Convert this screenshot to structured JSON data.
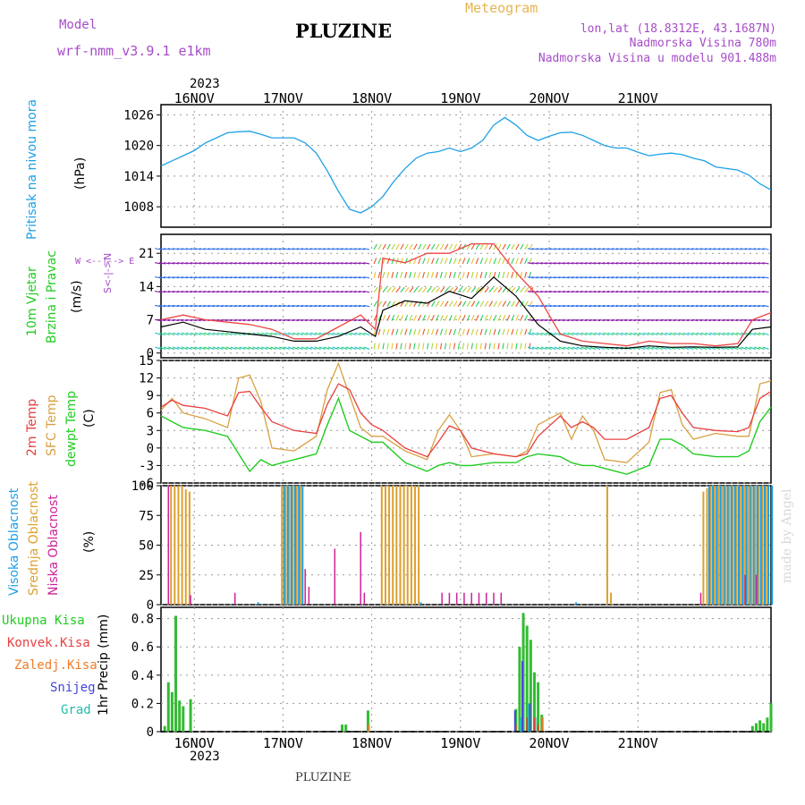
{
  "header": {
    "model_label": "Model",
    "model_name": "wrf-nmm_v3.9.1 e1km",
    "station": "PLUZINE",
    "meteogram": "Meteogram",
    "lonlat": "lon,lat (18.8312E, 43.1687N)",
    "altitude": "Nadmorska Visina 780m",
    "model_altitude": "Nadmorska Visina u modelu 901.488m",
    "footer_station": "PLUZINE",
    "credit": "made by Angel"
  },
  "colors": {
    "pressure": "#1ea0e6",
    "temp2m": "#e84040",
    "sfctemp": "#d9a040",
    "dewpt": "#22cc22",
    "high": "#1e9fe6",
    "mid": "#dca030",
    "low": "#cc2299",
    "total": "#33bb33",
    "conv": "#ee3333",
    "frozen": "#f07c28",
    "snow": "#4444dd",
    "hail": "#22bbaa",
    "purple": "#a64cc9",
    "orange": "#e6b450"
  },
  "axes": {
    "year_top": "2023",
    "year_bottom": "2023",
    "days": [
      "16NOV",
      "17NOV",
      "18NOV",
      "19NOV",
      "20NOV",
      "21NOV"
    ]
  },
  "labels": {
    "pressure_name": "Pritisak na nivou mora",
    "pressure_unit": "(hPa)",
    "wind_name1": "10m Vjetar",
    "wind_name2": "Brzina i Pravac",
    "wind_unit": "(m/s)",
    "wind_compass": "W <--|--> E",
    "wind_compass2": "S<-|->N",
    "temp_2m": "2m Temp",
    "temp_sfc": "SFC Temp",
    "temp_dew": "dewpt Temp",
    "temp_unit": "(C)",
    "cloud_high": "Visoka Oblacnost",
    "cloud_mid": "Srednja Oblacnost",
    "cloud_low": "Niska Oblacnost",
    "cloud_unit": "(%)",
    "precip_total": "Ukupna Kisa",
    "precip_conv": "Konvek.Kisa",
    "precip_frozen": "Zaledj.Kisa",
    "precip_snow": "Snijeg",
    "precip_hail": "Grad",
    "precip_unit": "1hr Precip (mm)"
  },
  "chart_data": [
    {
      "type": "line",
      "panel": "pressure",
      "x_start": "2023-11-15 15:00",
      "x_end": "2023-11-21 12:00",
      "ylim": [
        1004,
        1028
      ],
      "yticks": [
        1008,
        1014,
        1020,
        1026
      ],
      "series": [
        {
          "x_hours": [
            0,
            3,
            6,
            9,
            12,
            15,
            18,
            21,
            24,
            27,
            30,
            33,
            36,
            39,
            42,
            45,
            48,
            51,
            54,
            57,
            60,
            63,
            66,
            69,
            72,
            75,
            78,
            81,
            84,
            87,
            90,
            93,
            96,
            99,
            102,
            105,
            108,
            111,
            114,
            117,
            120,
            123,
            126,
            129,
            132,
            135,
            138,
            141,
            144,
            147,
            150,
            153,
            156,
            159,
            162,
            165
          ],
          "values": [
            1016,
            1017,
            1018,
            1019,
            1020.5,
            1021.5,
            1022.5,
            1022.7,
            1022.8,
            1022.2,
            1021.5,
            1021.5,
            1021.5,
            1020.5,
            1018.5,
            1015,
            1011,
            1007.5,
            1006.8,
            1008,
            1010,
            1013,
            1015.5,
            1017.5,
            1018.5,
            1018.8,
            1019.5,
            1018.8,
            1019.5,
            1021,
            1024,
            1025.5,
            1024,
            1022,
            1021,
            1021.8,
            1022.5,
            1022.6,
            1022,
            1021,
            1020,
            1019.5,
            1019.5,
            1018.7,
            1018,
            1018.3,
            1018.5,
            1018.2,
            1017.5,
            1017,
            1015.8,
            1015.5,
            1015.2,
            1014.2,
            1012.5,
            1011.3
          ]
        }
      ]
    },
    {
      "type": "line",
      "panel": "wind",
      "ylim": [
        -1,
        25
      ],
      "yticks": [
        0,
        7,
        14,
        21
      ],
      "series": [
        {
          "x_hours": [
            0,
            6,
            12,
            18,
            24,
            30,
            36,
            42,
            48,
            54,
            58,
            60,
            66,
            72,
            78,
            84,
            90,
            96,
            102,
            108,
            114,
            120,
            126,
            132,
            138,
            144,
            150,
            156,
            160,
            165
          ],
          "values": [
            5.5,
            6.5,
            5,
            4.5,
            4,
            3.5,
            2.5,
            2.5,
            3.5,
            5.5,
            3.5,
            9,
            11,
            10.5,
            13,
            11.5,
            16,
            12,
            6,
            2.5,
            1.5,
            1.2,
            1,
            1.5,
            1.2,
            1.3,
            1.2,
            1.3,
            5,
            5.5
          ]
        },
        {
          "x_hours": [
            0,
            6,
            12,
            18,
            24,
            30,
            36,
            42,
            48,
            54,
            58,
            60,
            66,
            72,
            78,
            84,
            90,
            96,
            102,
            108,
            114,
            120,
            126,
            132,
            138,
            144,
            150,
            156,
            160,
            165
          ],
          "values": [
            7,
            8,
            7,
            6.5,
            6,
            5,
            3,
            3,
            5.5,
            8,
            5,
            20,
            19,
            21,
            21,
            23,
            23,
            17,
            12,
            4,
            2.5,
            2,
            1.5,
            2.5,
            2,
            2,
            1.5,
            2,
            7,
            8.5
          ]
        }
      ]
    },
    {
      "type": "line",
      "panel": "temperature",
      "ylim": [
        -6,
        15
      ],
      "yticks": [
        -6,
        -3,
        0,
        3,
        6,
        9,
        12,
        15
      ],
      "series": [
        {
          "name": "2m Temp",
          "x_hours": [
            0,
            3,
            6,
            12,
            18,
            21,
            24,
            27,
            30,
            36,
            42,
            45,
            48,
            51,
            54,
            57,
            60,
            66,
            72,
            75,
            78,
            81,
            84,
            90,
            96,
            99,
            102,
            108,
            111,
            114,
            117,
            120,
            126,
            132,
            135,
            138,
            141,
            144,
            150,
            156,
            159,
            162,
            165
          ],
          "values": [
            7,
            8.2,
            7.3,
            6.8,
            5.5,
            9.5,
            9.7,
            7,
            4.5,
            3,
            2.5,
            7.5,
            11,
            10,
            6,
            4,
            3,
            0,
            -1.5,
            1,
            3.8,
            3,
            0,
            -1,
            -1.5,
            -1,
            2,
            5.5,
            3.5,
            4.5,
            3.5,
            1.5,
            1.5,
            3.5,
            8.5,
            9,
            6,
            3.5,
            3,
            2.8,
            3.5,
            8.5,
            9.7
          ]
        },
        {
          "name": "SFC Temp",
          "x_hours": [
            0,
            3,
            6,
            12,
            18,
            21,
            24,
            27,
            30,
            36,
            42,
            45,
            48,
            51,
            54,
            57,
            60,
            66,
            72,
            75,
            78,
            81,
            84,
            90,
            96,
            99,
            102,
            108,
            111,
            114,
            117,
            120,
            126,
            132,
            135,
            138,
            141,
            144,
            150,
            156,
            159,
            162,
            165
          ],
          "values": [
            6.5,
            8.5,
            6,
            5,
            3.5,
            12,
            12.5,
            8,
            0,
            -0.5,
            2,
            10,
            14.5,
            9,
            3.5,
            2,
            2,
            -0.5,
            -2,
            3,
            5.7,
            3,
            -1.5,
            -1,
            -1.5,
            -0.5,
            4,
            6,
            1.5,
            5.5,
            3,
            -2,
            -2.5,
            1,
            9.5,
            10,
            4,
            1.5,
            2.5,
            2,
            2,
            11,
            11.5
          ]
        },
        {
          "name": "dewpt Temp",
          "x_hours": [
            0,
            3,
            6,
            12,
            18,
            21,
            24,
            27,
            30,
            36,
            42,
            45,
            48,
            51,
            54,
            57,
            60,
            66,
            72,
            75,
            78,
            81,
            84,
            90,
            96,
            99,
            102,
            108,
            111,
            114,
            117,
            120,
            126,
            132,
            135,
            138,
            141,
            144,
            150,
            156,
            159,
            162,
            165
          ],
          "values": [
            5.5,
            4.5,
            3.5,
            3,
            2,
            -1,
            -4,
            -2,
            -3,
            -2,
            -1,
            4,
            8.5,
            3,
            2,
            1,
            1,
            -2.5,
            -4,
            -3,
            -2.5,
            -3,
            -3,
            -2.5,
            -2.5,
            -1.5,
            -1,
            -1.5,
            -2.5,
            -3,
            -3,
            -3.5,
            -4.5,
            -3,
            1.5,
            1.5,
            0.5,
            -1,
            -1.5,
            -1.5,
            -0.5,
            4.5,
            7
          ]
        }
      ]
    },
    {
      "type": "bar",
      "panel": "clouds",
      "ylim": [
        0,
        100
      ],
      "yticks": [
        0,
        25,
        50,
        75,
        100
      ],
      "series": [
        {
          "name": "Visoka Oblacnost",
          "x_hours": [
            26,
            33,
            34,
            35,
            36,
            37,
            38,
            70,
            112,
            148,
            149,
            150,
            151,
            152,
            153,
            154,
            155,
            156,
            157,
            158,
            159,
            160,
            161,
            162,
            163,
            164,
            165
          ],
          "values": [
            2,
            100,
            100,
            100,
            100,
            100,
            100,
            2,
            2,
            100,
            100,
            100,
            100,
            100,
            100,
            100,
            100,
            100,
            100,
            100,
            100,
            100,
            100,
            100,
            100,
            100,
            100
          ]
        },
        {
          "name": "Srednja Oblacnost",
          "x_hours": [
            3,
            4,
            5,
            6,
            7,
            8,
            33,
            34,
            35,
            36,
            37,
            38,
            60,
            61,
            62,
            63,
            64,
            65,
            66,
            67,
            68,
            69,
            70,
            121,
            122,
            147,
            148,
            149,
            150,
            151,
            152,
            153,
            154,
            155,
            156,
            157,
            158,
            159,
            160,
            161,
            162,
            163,
            164
          ],
          "values": [
            100,
            100,
            100,
            100,
            97,
            95,
            100,
            100,
            100,
            100,
            100,
            100,
            100,
            100,
            100,
            100,
            100,
            100,
            100,
            100,
            100,
            100,
            100,
            100,
            10,
            95,
            98,
            100,
            100,
            100,
            100,
            100,
            100,
            100,
            100,
            100,
            100,
            100,
            100,
            100,
            100,
            100,
            100
          ]
        },
        {
          "name": "Niska Oblacnost",
          "x_hours": [
            2,
            8,
            20,
            39,
            40,
            47,
            54,
            55,
            76,
            78,
            80,
            82,
            84,
            86,
            88,
            90,
            92,
            146,
            158,
            161
          ],
          "values": [
            100,
            8,
            10,
            30,
            15,
            47,
            61,
            10,
            10,
            10,
            10,
            10,
            10,
            10,
            10,
            10,
            10,
            10,
            25,
            25
          ]
        }
      ]
    },
    {
      "type": "bar",
      "panel": "precip",
      "ylim": [
        0,
        0.88
      ],
      "yticks": [
        0,
        0.2,
        0.4,
        0.6,
        0.8
      ],
      "series": [
        {
          "name": "Ukupna Kisa",
          "x_hours": [
            1,
            2,
            3,
            4,
            5,
            6,
            8,
            49,
            50,
            56,
            96,
            97,
            98,
            99,
            100,
            101,
            102,
            103,
            160,
            161,
            162,
            163,
            164,
            165
          ],
          "values": [
            0.04,
            0.35,
            0.28,
            0.82,
            0.22,
            0.18,
            0.23,
            0.05,
            0.05,
            0.15,
            0.16,
            0.6,
            0.84,
            0.75,
            0.65,
            0.42,
            0.35,
            0.12,
            0.04,
            0.06,
            0.08,
            0.06,
            0.1,
            0.2
          ]
        },
        {
          "name": "Konvek.Kisa",
          "x_hours": [
            96,
            99,
            101,
            102
          ],
          "values": [
            0.05,
            0.1,
            0.1,
            0.05
          ]
        },
        {
          "name": "Zaledj.Kisa",
          "x_hours": [
            56,
            103
          ],
          "values": [
            0.05,
            0.1
          ]
        },
        {
          "name": "Snijeg",
          "x_hours": [
            96,
            98,
            100
          ],
          "values": [
            0.15,
            0.5,
            0.2
          ]
        },
        {
          "name": "Grad",
          "x_hours": [
            97,
            99,
            101
          ],
          "values": [
            0.1,
            0.2,
            0.1
          ]
        }
      ]
    }
  ]
}
